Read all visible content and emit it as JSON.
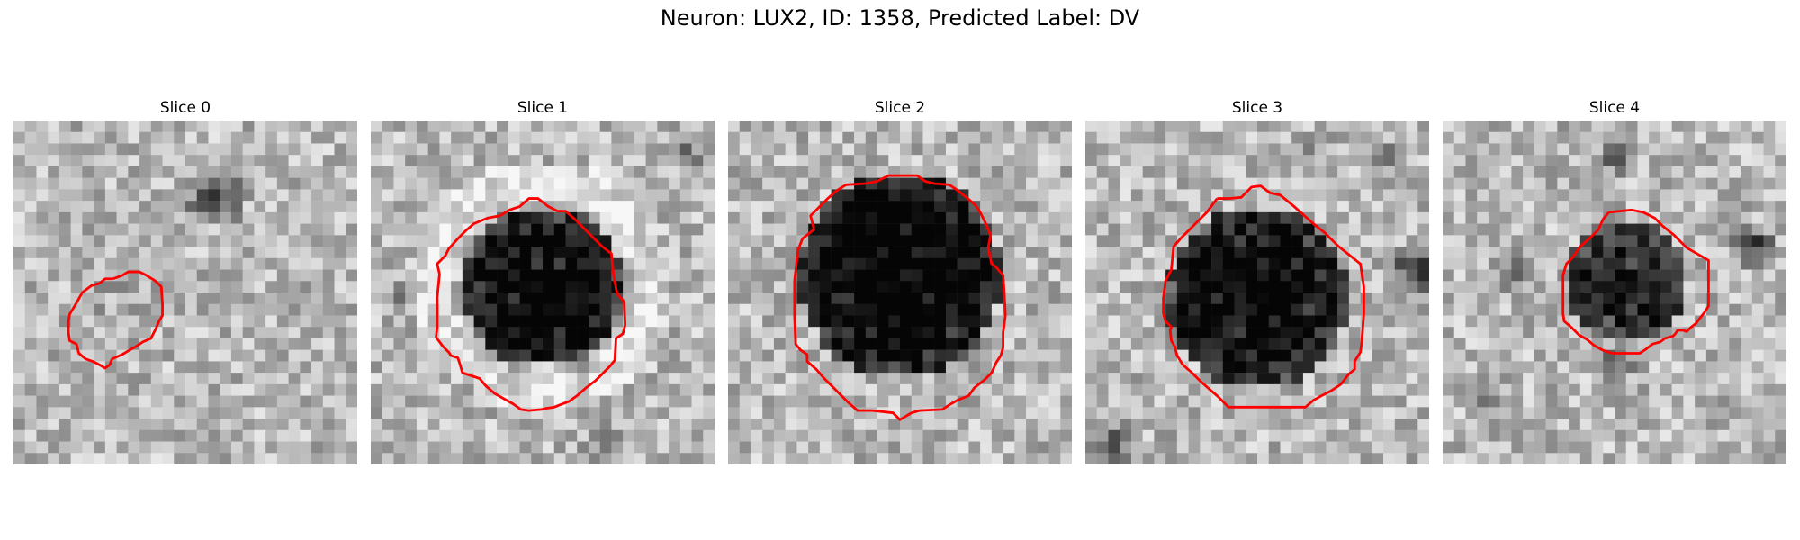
{
  "figure": {
    "title": "Neuron: LUX2, ID: 1358, Predicted Label: DV"
  },
  "slices": [
    {
      "label": "Slice 0",
      "contour": "small irregular outline, lower-left",
      "cell_darkness": 0.05,
      "side_blob": "upper-right dark spot"
    },
    {
      "label": "Slice 1",
      "contour": "large rounded outline, center",
      "cell_darkness": 0.85,
      "side_blob": "none"
    },
    {
      "label": "Slice 2",
      "contour": "largest outline, center",
      "cell_darkness": 0.9,
      "side_blob": "none"
    },
    {
      "label": "Slice 3",
      "contour": "octagonal outline, center",
      "cell_darkness": 0.8,
      "side_blob": "right edge dark region"
    },
    {
      "label": "Slice 4",
      "contour": "small octagonal outline, center-right",
      "cell_darkness": 0.65,
      "side_blob": "right dark spot"
    }
  ],
  "colors": {
    "contour": "#ff0000",
    "background": "#ffffff"
  }
}
